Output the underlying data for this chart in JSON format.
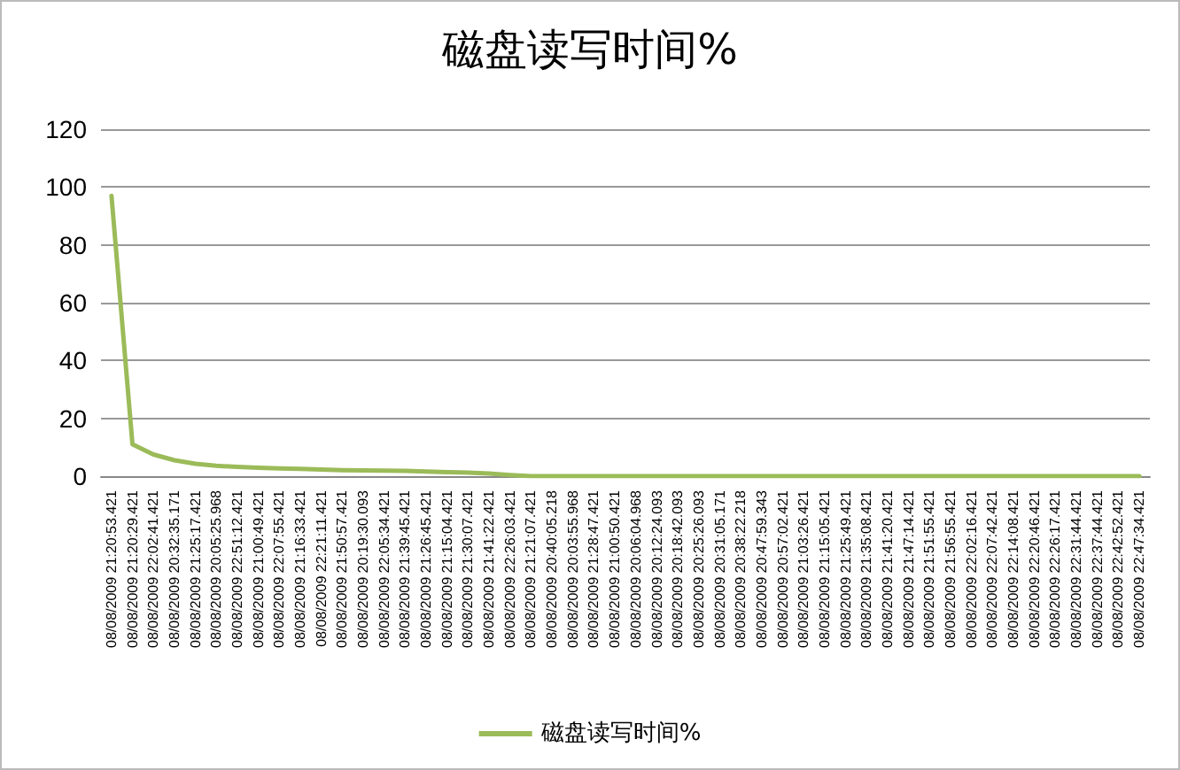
{
  "chart_data": {
    "type": "line",
    "title": "磁盘读写时间%",
    "categories": [
      "08/08/2009 21:20:53.421",
      "08/08/2009 21:20:29.421",
      "08/08/2009 22:02:41.421",
      "08/08/2009 20:32:35.171",
      "08/08/2009 21:25:17.421",
      "08/08/2009 20:05:25.968",
      "08/08/2009 22:51:12.421",
      "08/08/2009 21:00:49.421",
      "08/08/2009 22:07:55.421",
      "08/08/2009 21:16:33.421",
      "08/08/2009 22:21:11.421",
      "08/08/2009 21:50:57.421",
      "08/08/2009 20:19:30.093",
      "08/08/2009 22:05:34.421",
      "08/08/2009 21:39:45.421",
      "08/08/2009 21:26:45.421",
      "08/08/2009 21:15:04.421",
      "08/08/2009 21:30:07.421",
      "08/08/2009 21:41:22.421",
      "08/08/2009 22:26:03.421",
      "08/08/2009 21:21:07.421",
      "08/08/2009 20:40:05.218",
      "08/08/2009 20:03:55.968",
      "08/08/2009 21:28:47.421",
      "08/08/2009 21:00:50.421",
      "08/08/2009 20:06:04.968",
      "08/08/2009 20:12:24.093",
      "08/08/2009 20:18:42.093",
      "08/08/2009 20:25:26.093",
      "08/08/2009 20:31:05.171",
      "08/08/2009 20:38:22.218",
      "08/08/2009 20:47:59.343",
      "08/08/2009 20:57:02.421",
      "08/08/2009 21:03:26.421",
      "08/08/2009 21:15:05.421",
      "08/08/2009 21:25:49.421",
      "08/08/2009 21:35:08.421",
      "08/08/2009 21:41:20.421",
      "08/08/2009 21:47:14.421",
      "08/08/2009 21:51:55.421",
      "08/08/2009 21:56:55.421",
      "08/08/2009 22:02:16.421",
      "08/08/2009 22:07:42.421",
      "08/08/2009 22:14:08.421",
      "08/08/2009 22:20:46.421",
      "08/08/2009 22:26:17.421",
      "08/08/2009 22:31:44.421",
      "08/08/2009 22:37:44.421",
      "08/08/2009 22:42:52.421",
      "08/08/2009 22:47:34.421"
    ],
    "series": [
      {
        "name": "磁盘读写时间%",
        "color": "#9bbb59",
        "values": [
          97,
          11,
          7.5,
          5.5,
          4.3,
          3.6,
          3.2,
          2.9,
          2.7,
          2.5,
          2.3,
          2.1,
          2,
          1.9,
          1.8,
          1.6,
          1.4,
          1.2,
          0.9,
          0.4,
          0,
          0,
          0,
          0,
          0,
          0,
          0,
          0,
          0,
          0,
          0,
          0,
          0,
          0,
          0,
          0,
          0,
          0,
          0,
          0,
          0,
          0,
          0,
          0,
          0,
          0,
          0,
          0,
          0,
          0
        ]
      }
    ],
    "ylim": [
      0,
      120
    ],
    "yticks": [
      0,
      20,
      40,
      60,
      80,
      100,
      120
    ],
    "grid": "y",
    "legend": "bottom",
    "marker": "none",
    "line_style": "solid"
  }
}
